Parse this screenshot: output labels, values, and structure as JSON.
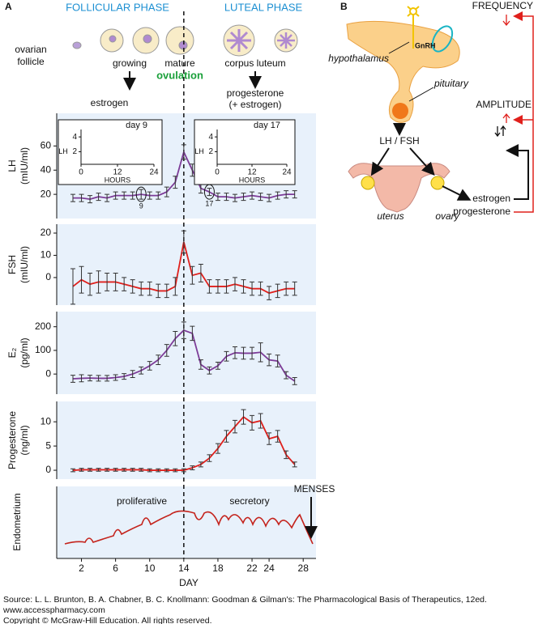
{
  "labels": {
    "panel_a": "A",
    "panel_b": "B",
    "follicular": "FOLLICULAR PHASE",
    "luteal": "LUTEAL PHASE",
    "ovarian_follicle": [
      "ovarian",
      "follicle"
    ],
    "growing": "growing",
    "mature": "mature",
    "ovulation": "ovulation",
    "corpus_luteum": "corpus luteum",
    "estrogen": "estrogen",
    "progesterone": "progesterone",
    "plus_estrogen": "(+ estrogen)"
  },
  "diagram": {
    "frequency": "FREQUENCY",
    "amplitude": "AMPLITUDE",
    "gnrh": "GnRH",
    "hypothalamus": "hypothalamus",
    "pituitary": "pituitary",
    "lh_fsh": "LH / FSH",
    "uterus": "uterus",
    "ovary": "ovary",
    "estrogen": "estrogen",
    "progesterone": "progesterone"
  },
  "chart_data": [
    {
      "type": "line",
      "ylabel": [
        "LH",
        "(mIU/ml)"
      ],
      "color": "#7d3c98",
      "x": [
        1,
        2,
        3,
        4,
        5,
        6,
        7,
        8,
        9,
        10,
        11,
        12,
        13,
        14,
        15,
        16,
        17,
        18,
        19,
        20,
        21,
        22,
        23,
        24,
        25,
        26,
        27
      ],
      "values": [
        17,
        17,
        16,
        18,
        17,
        19,
        19,
        19,
        20,
        19,
        19,
        22,
        30,
        55,
        40,
        25,
        22,
        18,
        18,
        17,
        18,
        19,
        18,
        17,
        19,
        20,
        20
      ],
      "errors": [
        3,
        3,
        3,
        3,
        3,
        3,
        3,
        3,
        4,
        3,
        3,
        4,
        5,
        6,
        5,
        4,
        3,
        3,
        3,
        3,
        3,
        3,
        3,
        3,
        3,
        3,
        3
      ],
      "xlim": [
        -0.9,
        29.5
      ],
      "ylim": [
        0,
        87
      ],
      "yticks": [
        20,
        40,
        60
      ],
      "circled": [
        9,
        17
      ],
      "insets": [
        {
          "type": "line",
          "title": "day 9",
          "xlabel": "HOURS",
          "ylabel": "LH",
          "x": [
            0,
            0.5,
            1.5,
            2.1,
            3.1,
            3.7,
            4.7,
            5.3,
            6.3,
            6.9,
            7.9,
            8.5,
            9.5,
            10.1,
            11.1,
            11.7,
            12.7,
            13.3,
            14.3,
            14.9,
            15.9,
            16.5,
            17.5,
            18.1,
            19.1,
            19.7,
            20.7,
            21.3,
            22.3,
            22.9,
            24
          ],
          "values": [
            2.2,
            4,
            2.2,
            3.9,
            2.2,
            4.1,
            2.2,
            3.8,
            2.2,
            4,
            2.2,
            4.2,
            2.2,
            3.9,
            2.2,
            4,
            2.2,
            3.8,
            2.2,
            4.1,
            2.2,
            3.9,
            2.2,
            4,
            2.2,
            3.8,
            2.2,
            4.1,
            2.2,
            3.9,
            2.2
          ],
          "xlim": [
            0,
            24
          ],
          "xticks": [
            0,
            12,
            24
          ],
          "ylim": [
            0.3,
            5
          ],
          "yticks": [
            2,
            4
          ]
        },
        {
          "type": "line",
          "title": "day 17",
          "xlabel": "HOURS",
          "ylabel": "LH",
          "x": [
            0,
            0.8,
            2,
            4.3,
            5.5,
            7.8,
            9,
            11.3,
            12.5,
            14.8,
            16,
            18,
            19.2,
            21.2,
            22.4,
            24
          ],
          "values": [
            2,
            4.6,
            2,
            4.4,
            2,
            4.2,
            2,
            4,
            2,
            3.6,
            2,
            3.8,
            2,
            3.5,
            2,
            2
          ],
          "xlim": [
            0,
            24
          ],
          "xticks": [
            0,
            12,
            24
          ],
          "ylim": [
            0.3,
            5
          ],
          "yticks": [
            2,
            4
          ]
        }
      ]
    },
    {
      "type": "line",
      "ylabel": [
        "FSH",
        "(mIU/ml)"
      ],
      "color": "#e0201c",
      "x": [
        1,
        2,
        3,
        4,
        5,
        6,
        7,
        8,
        9,
        10,
        11,
        12,
        13,
        14,
        15,
        16,
        17,
        18,
        19,
        20,
        21,
        22,
        23,
        24,
        25,
        26,
        27
      ],
      "values": [
        -4,
        -1,
        -3,
        -2,
        -2,
        -2,
        -3,
        -4,
        -5,
        -5,
        -6,
        -6,
        -4,
        16,
        1,
        2,
        -4,
        -4,
        -4,
        -3,
        -4,
        -5,
        -5,
        -7,
        -6,
        -5,
        -5
      ],
      "errors": [
        8,
        6,
        5,
        5,
        4,
        4,
        3,
        3,
        3,
        3,
        3,
        3,
        4,
        5,
        4,
        4,
        3,
        3,
        3,
        3,
        3,
        3,
        3,
        3,
        3,
        3,
        3
      ],
      "xlim": [
        -0.9,
        29.5
      ],
      "ylim": [
        -12.4,
        24
      ],
      "yticks": [
        0,
        10,
        20
      ]
    },
    {
      "type": "line",
      "ylabel": [
        "E₂",
        "(pg/ml)"
      ],
      "color": "#7d3c98",
      "x": [
        1,
        2,
        3,
        4,
        5,
        6,
        7,
        8,
        9,
        10,
        11,
        12,
        13,
        14,
        15,
        16,
        17,
        18,
        19,
        20,
        21,
        22,
        23,
        24,
        25,
        26,
        27
      ],
      "values": [
        -20,
        -18,
        -17,
        -18,
        -18,
        -15,
        -10,
        0,
        15,
        35,
        60,
        100,
        150,
        185,
        172,
        40,
        15,
        35,
        75,
        90,
        88,
        88,
        92,
        60,
        55,
        -5,
        -30
      ],
      "errors": [
        15,
        15,
        12,
        12,
        12,
        12,
        12,
        15,
        15,
        18,
        20,
        25,
        30,
        35,
        30,
        20,
        15,
        15,
        20,
        25,
        25,
        25,
        40,
        25,
        25,
        15,
        15
      ],
      "xlim": [
        -0.9,
        29.5
      ],
      "ylim": [
        -85,
        264
      ],
      "yticks": [
        0,
        100,
        200
      ]
    },
    {
      "type": "line",
      "ylabel": [
        "Progesterone",
        "(ng/ml)"
      ],
      "color": "#e0201c",
      "x": [
        1,
        2,
        3,
        4,
        5,
        6,
        7,
        8,
        9,
        10,
        11,
        12,
        13,
        14,
        15,
        16,
        17,
        18,
        19,
        20,
        21,
        22,
        23,
        24,
        25,
        26,
        27
      ],
      "values": [
        0,
        0.1,
        0.1,
        0.1,
        0.1,
        0.1,
        0.1,
        0.1,
        0.1,
        0,
        0,
        0,
        0,
        0,
        0.5,
        1.2,
        2.5,
        4.5,
        7,
        9,
        11,
        9.8,
        10.2,
        6.5,
        7,
        3.2,
        1.2
      ],
      "errors": [
        0.3,
        0.3,
        0.3,
        0.3,
        0.3,
        0.3,
        0.3,
        0.3,
        0.3,
        0.3,
        0.3,
        0.3,
        0.3,
        0.3,
        0.4,
        0.5,
        0.7,
        1,
        1.2,
        1.3,
        1.5,
        1.5,
        1.5,
        1.2,
        1.2,
        0.8,
        0.5
      ],
      "xlim": [
        -0.9,
        29.5
      ],
      "ylim": [
        -1.83,
        14.2
      ],
      "yticks": [
        0,
        5,
        10
      ]
    }
  ],
  "day_axis": {
    "xlim": [
      -0.9,
      29.5
    ],
    "xticks": [
      2,
      6,
      10,
      14,
      18,
      22,
      24,
      28
    ],
    "xlabel": "DAY"
  },
  "endometrium": {
    "ylabel": "Endometrium",
    "proliferative": "proliferative",
    "secretory": "secretory",
    "menses": "MENSES"
  },
  "source": [
    "Source: L. L. Brunton, B. A. Chabner, B. C. Knollmann: Goodman & Gilman's: The Pharmacological Basis of Therapeutics, 12ed.",
    "www.accesspharmacy.com",
    "Copyright © McGraw-Hill Education.  All rights reserved."
  ]
}
